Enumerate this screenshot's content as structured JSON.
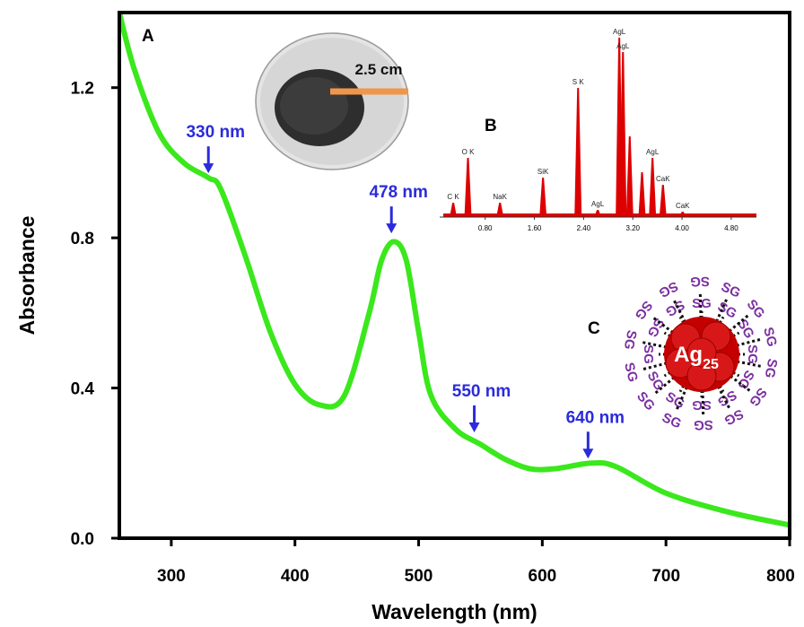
{
  "chart_data": [
    {
      "type": "line",
      "panel_label": "A",
      "x_label": "Wavelength (nm)",
      "y_label": "Absorbance",
      "x": [
        258,
        270,
        290,
        310,
        330,
        340,
        360,
        380,
        400,
        420,
        440,
        460,
        470,
        480,
        490,
        500,
        510,
        530,
        550,
        570,
        590,
        610,
        640,
        660,
        700,
        750,
        800
      ],
      "values": [
        1.4,
        1.25,
        1.08,
        1.0,
        0.96,
        0.93,
        0.75,
        0.55,
        0.41,
        0.355,
        0.38,
        0.6,
        0.74,
        0.79,
        0.74,
        0.55,
        0.38,
        0.29,
        0.25,
        0.21,
        0.185,
        0.185,
        0.2,
        0.19,
        0.12,
        0.07,
        0.035
      ],
      "color": "#3ae81c",
      "xlim": [
        258,
        800
      ],
      "ylim": [
        0,
        1.4
      ],
      "xticks": [
        300,
        400,
        500,
        600,
        700,
        800
      ],
      "yticks": [
        {
          "value": 0,
          "label": "0.0"
        },
        0.4,
        0.8,
        1.2
      ],
      "annotations": [
        {
          "text": "330 nm",
          "x": 330,
          "y": 0.96
        },
        {
          "text": "478 nm",
          "x": 478,
          "y": 0.8
        },
        {
          "text": "550 nm",
          "x": 545,
          "y": 0.27
        },
        {
          "text": "640 nm",
          "x": 637,
          "y": 0.2
        }
      ]
    },
    {
      "type": "spectrum",
      "panel_label": "B",
      "x": [
        0.28,
        0.52,
        1.04,
        1.74,
        2.31,
        2.63,
        2.98,
        3.04,
        3.15,
        3.35,
        3.52,
        3.69,
        4.01
      ],
      "values": [
        8,
        33,
        8,
        22,
        72,
        4,
        100,
        92,
        45,
        25,
        33,
        18,
        3
      ],
      "peak_labels": [
        "C K",
        "O K",
        "NaK",
        "SiK",
        "S K",
        "AgL",
        "AgL",
        "AgL",
        null,
        null,
        "AgL",
        "CaK",
        "CaK"
      ],
      "color": "#dd0000",
      "xlim": [
        0.06,
        5.21
      ],
      "ylim": [
        0,
        100
      ],
      "xticks": [
        {
          "value": 0.8,
          "label": "0.80"
        },
        {
          "value": 1.6,
          "label": "1.60"
        },
        {
          "value": 2.4,
          "label": "2.40"
        },
        {
          "value": 3.2,
          "label": "3.20"
        },
        {
          "value": 4.0,
          "label": "4.00"
        },
        {
          "value": 4.8,
          "label": "4.80"
        }
      ]
    }
  ],
  "photo_label": "2.5 cm",
  "cluster": {
    "label": "C",
    "core": "Ag",
    "core_subscript": "25",
    "ligand": "SG"
  }
}
